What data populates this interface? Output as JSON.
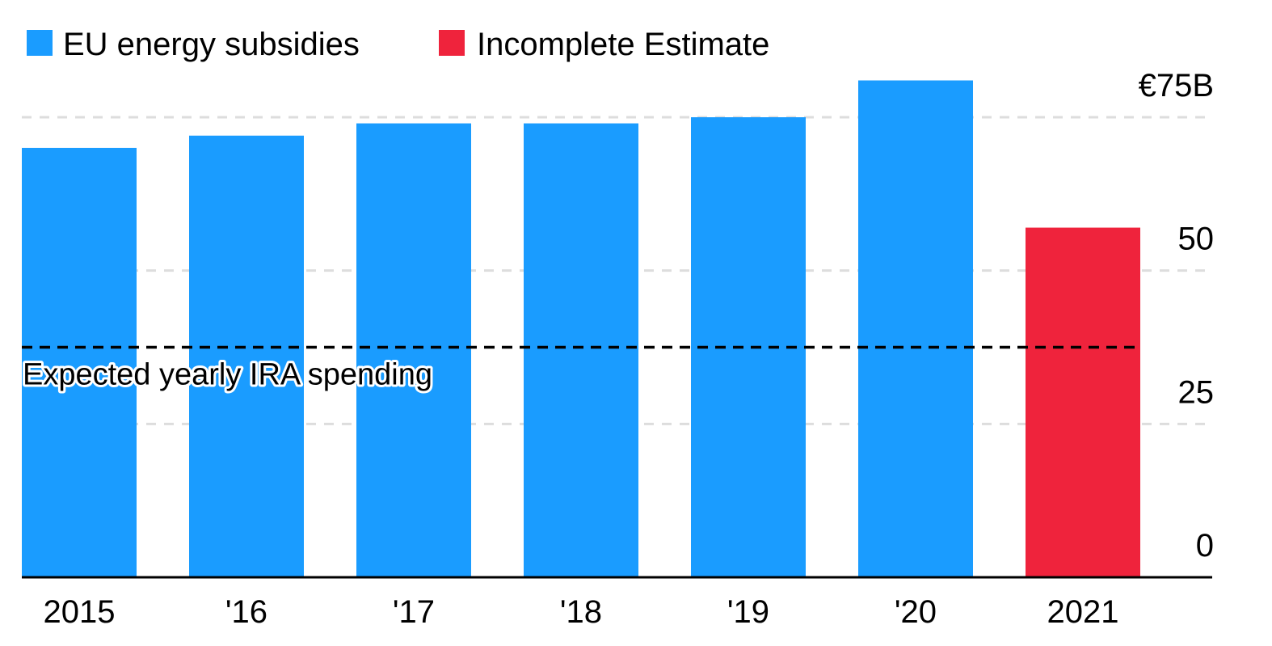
{
  "chart_data": {
    "type": "bar",
    "categories": [
      "2015",
      "'16",
      "'17",
      "'18",
      "'19",
      "'20",
      "2021"
    ],
    "series": [
      {
        "name": "EU energy subsidies",
        "color": "#1a9cff",
        "values": [
          70,
          72,
          74,
          74,
          75,
          81,
          null
        ]
      },
      {
        "name": "Incomplete Estimate",
        "color": "#ef233c",
        "values": [
          null,
          null,
          null,
          null,
          null,
          null,
          57
        ]
      }
    ],
    "ylim": [
      0,
      75
    ],
    "yticks": [
      {
        "value": 75,
        "label": "€75B"
      },
      {
        "value": 50,
        "label": "50"
      },
      {
        "value": 25,
        "label": "25"
      },
      {
        "value": 0,
        "label": "0"
      }
    ],
    "reference_line": {
      "value": 37.5,
      "label": "Expected yearly IRA spending"
    },
    "grid": true,
    "legend_position": "top-left",
    "colors": {
      "gridline": "#dddddd",
      "axis": "#000000",
      "reference": "#000000"
    }
  }
}
